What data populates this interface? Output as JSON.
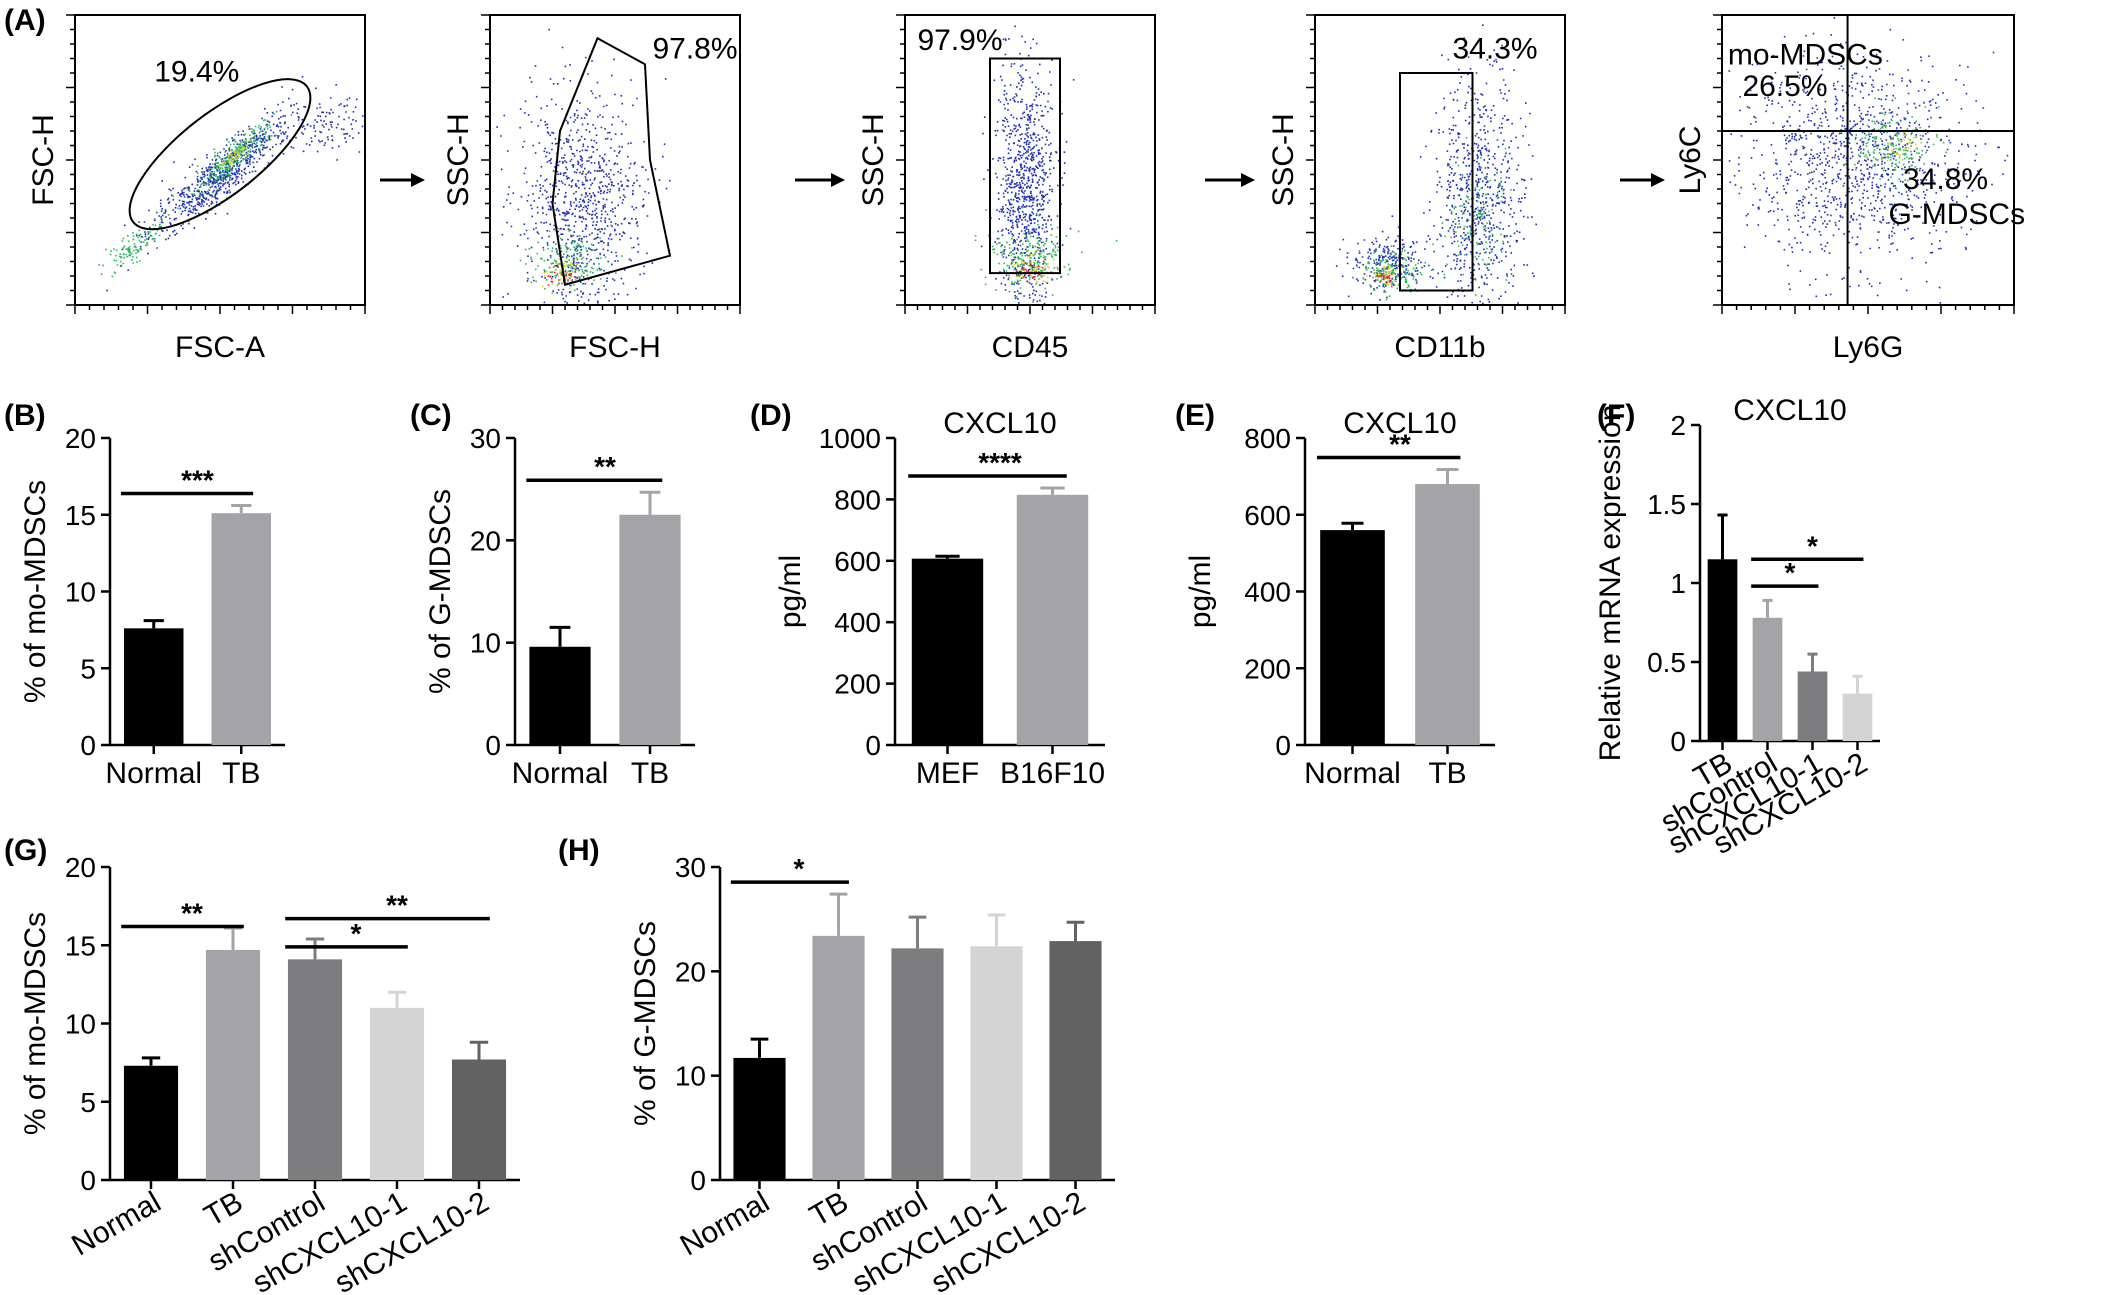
{
  "colors": {
    "black": "#000000",
    "lightgray": "#a3a3a8",
    "midgray": "#7d7d80",
    "verylight": "#d4d4d4",
    "darkgray": "#626262",
    "dot_blue": "#1f2fb8",
    "dot_green": "#2fb85c",
    "dot_yellow": "#d9d12a",
    "dot_red": "#e0262a"
  },
  "panel_A": {
    "label": "(A)",
    "plots": [
      {
        "xlabel": "FSC-A",
        "ylabel": "FSC-H",
        "gate": "ellipse",
        "pct": [
          "19.4%"
        ]
      },
      {
        "xlabel": "FSC-H",
        "ylabel": "SSC-H",
        "gate": "polygon",
        "pct": [
          "97.8%"
        ]
      },
      {
        "xlabel": "CD45",
        "ylabel": "SSC-H",
        "gate": "rect",
        "pct": [
          "97.9%"
        ]
      },
      {
        "xlabel": "CD11b",
        "ylabel": "SSC-H",
        "gate": "rect",
        "pct": [
          "34.3%"
        ]
      },
      {
        "xlabel": "Ly6G",
        "ylabel": "Ly6C",
        "gate": "quadrant",
        "pct": [
          "mo-MDSCs",
          "26.5%",
          "34.8%",
          "G-MDSCs"
        ]
      }
    ]
  },
  "chart_data": [
    {
      "panel": "(B)",
      "type": "bar",
      "title": "",
      "xlabel": "",
      "ylabel": "% of mo-MDSCs",
      "categories": [
        "Normal",
        "TB"
      ],
      "values": [
        7.6,
        15.1
      ],
      "errors": [
        0.5,
        0.5
      ],
      "ylim": [
        0,
        20
      ],
      "yticks": [
        "0",
        "5",
        "10",
        "15",
        "20"
      ],
      "colors": [
        "#000000",
        "#a3a3a8"
      ],
      "significance": [
        {
          "from": 0,
          "to": 1,
          "label": "***"
        }
      ],
      "rotate_labels": false
    },
    {
      "panel": "(C)",
      "type": "bar",
      "title": "",
      "xlabel": "",
      "ylabel": "% of G-MDSCs",
      "categories": [
        "Normal",
        "TB"
      ],
      "values": [
        9.6,
        22.5
      ],
      "errors": [
        1.9,
        2.2
      ],
      "ylim": [
        0,
        30
      ],
      "yticks": [
        "0",
        "10",
        "20",
        "30"
      ],
      "colors": [
        "#000000",
        "#a3a3a8"
      ],
      "significance": [
        {
          "from": 0,
          "to": 1,
          "label": "**"
        }
      ],
      "rotate_labels": false
    },
    {
      "panel": "(D)",
      "type": "bar",
      "title": "CXCL10",
      "xlabel": "",
      "ylabel": "pg/ml",
      "categories": [
        "MEF",
        "B16F10"
      ],
      "values": [
        607,
        815
      ],
      "errors": [
        8,
        22
      ],
      "ylim": [
        0,
        1000
      ],
      "yticks": [
        "0",
        "200",
        "400",
        "600",
        "800",
        "1000"
      ],
      "colors": [
        "#000000",
        "#a3a3a8"
      ],
      "significance": [
        {
          "from": 0,
          "to": 1,
          "label": "****"
        }
      ],
      "rotate_labels": false
    },
    {
      "panel": "(E)",
      "type": "bar",
      "title": "CXCL10",
      "xlabel": "",
      "ylabel": "pg/ml",
      "categories": [
        "Normal",
        "TB"
      ],
      "values": [
        560,
        680
      ],
      "errors": [
        18,
        38
      ],
      "ylim": [
        0,
        800
      ],
      "yticks": [
        "0",
        "200",
        "400",
        "600",
        "800"
      ],
      "colors": [
        "#000000",
        "#a3a3a8"
      ],
      "significance": [
        {
          "from": 0,
          "to": 1,
          "label": "**"
        }
      ],
      "rotate_labels": false
    },
    {
      "panel": "(F)",
      "type": "bar",
      "title": "CXCL10",
      "xlabel": "",
      "ylabel": "Relative mRNA expression",
      "categories": [
        "TB",
        "shControl",
        "shCXCL10-1",
        "shCXCL10-2"
      ],
      "values": [
        1.15,
        0.78,
        0.44,
        0.3
      ],
      "errors": [
        0.28,
        0.11,
        0.11,
        0.11
      ],
      "ylim": [
        0,
        2
      ],
      "yticks": [
        "0",
        "0.5",
        "1",
        "1.5",
        "2"
      ],
      "colors": [
        "#000000",
        "#a3a3a8",
        "#7d7d80",
        "#d4d4d4"
      ],
      "significance": [
        {
          "from": 1,
          "to": 2,
          "label": "*"
        },
        {
          "from": 1,
          "to": 3,
          "label": "*"
        }
      ],
      "rotate_labels": true
    },
    {
      "panel": "(G)",
      "type": "bar",
      "title": "",
      "xlabel": "",
      "ylabel": "% of mo-MDSCs",
      "categories": [
        "Normal",
        "TB",
        "shControl",
        "shCXCL10-1",
        "shCXCL10-2"
      ],
      "values": [
        7.3,
        14.7,
        14.1,
        11.0,
        7.7
      ],
      "errors": [
        0.5,
        1.4,
        1.3,
        1.0,
        1.1
      ],
      "ylim": [
        0,
        20
      ],
      "yticks": [
        "0",
        "5",
        "10",
        "15",
        "20"
      ],
      "colors": [
        "#000000",
        "#a3a3a8",
        "#7d7d80",
        "#d4d4d4",
        "#626262"
      ],
      "significance": [
        {
          "from": 0,
          "to": 1,
          "label": "**"
        },
        {
          "from": 2,
          "to": 3,
          "label": "*"
        },
        {
          "from": 2,
          "to": 4,
          "label": "**"
        }
      ],
      "rotate_labels": true
    },
    {
      "panel": "(H)",
      "type": "bar",
      "title": "",
      "xlabel": "",
      "ylabel": "% of G-MDSCs",
      "categories": [
        "Normal",
        "TB",
        "shControl",
        "shCXCL10-1",
        "shCXCL10-2"
      ],
      "values": [
        11.7,
        23.4,
        22.2,
        22.4,
        22.9
      ],
      "errors": [
        1.8,
        4.0,
        3.0,
        3.0,
        1.8
      ],
      "ylim": [
        0,
        30
      ],
      "yticks": [
        "0",
        "10",
        "20",
        "30"
      ],
      "colors": [
        "#000000",
        "#a3a3a8",
        "#7d7d80",
        "#d4d4d4",
        "#626262"
      ],
      "significance": [
        {
          "from": 0,
          "to": 1,
          "label": "*"
        }
      ],
      "rotate_labels": true
    }
  ]
}
